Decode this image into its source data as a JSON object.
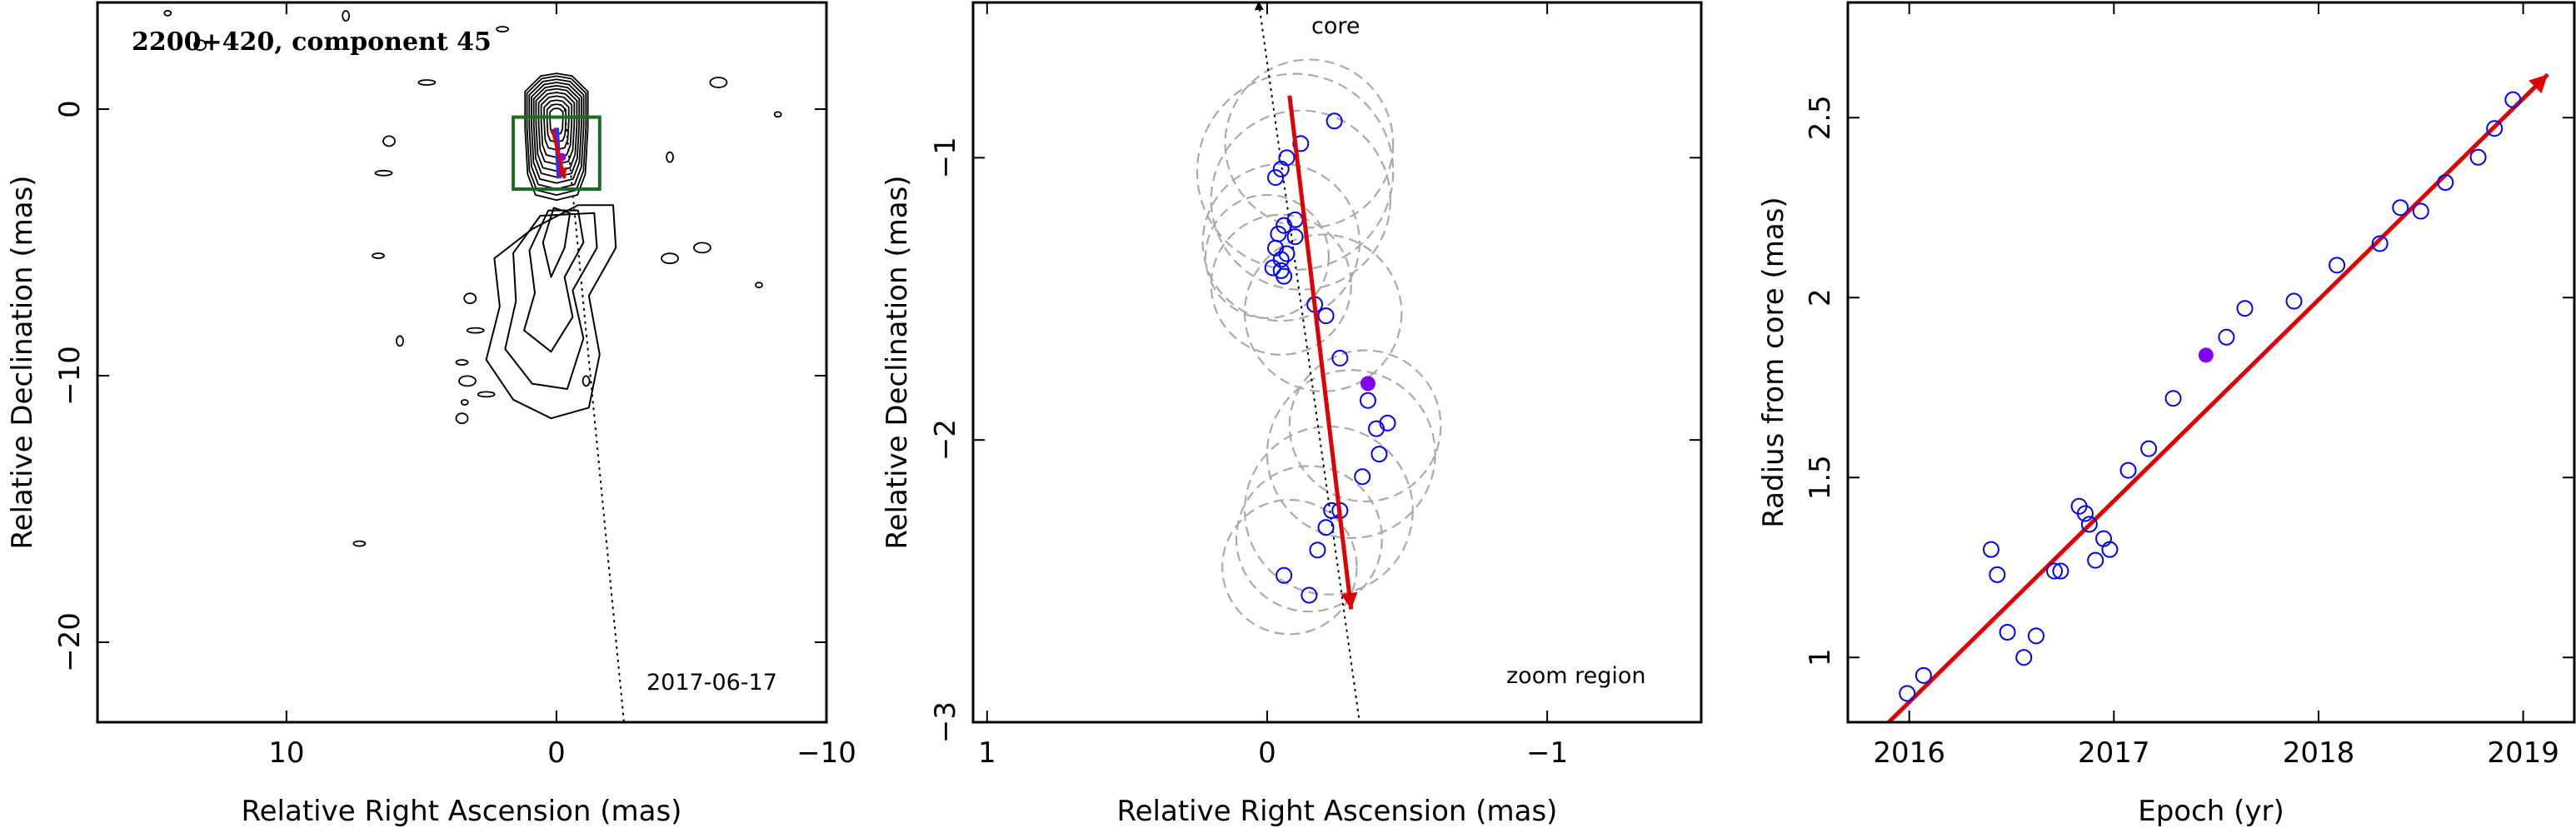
{
  "chart_data": [
    {
      "type": "scatter",
      "panel": "contour-map",
      "title": "2200+420, component 45",
      "xlabel": "Relative Right Ascension (mas)",
      "ylabel": "Relative Declination (mas)",
      "xlim": [
        17,
        -10
      ],
      "ylim": [
        -23,
        4
      ],
      "xticks": [
        "10",
        "0",
        "−10"
      ],
      "xtick_values": [
        10,
        0,
        -10
      ],
      "yticks": [
        "0",
        "−10",
        "−20"
      ],
      "ytick_values": [
        0,
        -10,
        -20
      ],
      "date_label": "2017-06-17",
      "colors": {
        "contour": "#000000",
        "box": "#1a6e1a",
        "arrow": "#e00000",
        "marker": "#7f00ff"
      },
      "zoom_box": {
        "x": [
          1.6,
          -1.6
        ],
        "y": [
          -0.3,
          -3.0
        ]
      },
      "motion_arrow": {
        "from": [
          0.15,
          -0.75
        ],
        "to": [
          -0.3,
          -2.6
        ]
      },
      "track_line": {
        "from": [
          -0.3,
          0
        ],
        "to": [
          -2.5,
          -23
        ]
      },
      "jet_contour_levels": [
        0.18,
        0.24,
        0.31,
        0.38,
        0.45,
        0.52,
        0.6,
        0.68,
        0.77,
        0.86,
        0.95
      ]
    },
    {
      "type": "scatter",
      "panel": "zoom",
      "xlabel": "Relative Right Ascension (mas)",
      "ylabel": "Relative Declination (mas)",
      "xlim": [
        1.05,
        -1.55
      ],
      "ylim": [
        -3.0,
        -0.45
      ],
      "xticks": [
        "1",
        "0",
        "−1"
      ],
      "xtick_values": [
        1,
        0,
        -1
      ],
      "yticks": [
        "−1",
        "−2",
        "−3"
      ],
      "ytick_values": [
        -1,
        -2,
        -3
      ],
      "core_label": "core",
      "region_label": "zoom region",
      "colors": {
        "points": "#0000ff",
        "highlight": "#7f00ff",
        "arrow": "#e00000",
        "circles": "#aaaaaa"
      },
      "points": [
        {
          "x": -0.24,
          "y": -0.87
        },
        {
          "x": -0.12,
          "y": -0.95
        },
        {
          "x": -0.07,
          "y": -1.0
        },
        {
          "x": -0.05,
          "y": -1.04
        },
        {
          "x": -0.03,
          "y": -1.07
        },
        {
          "x": -0.1,
          "y": -1.22
        },
        {
          "x": -0.06,
          "y": -1.24
        },
        {
          "x": -0.1,
          "y": -1.28
        },
        {
          "x": -0.04,
          "y": -1.27
        },
        {
          "x": -0.03,
          "y": -1.32
        },
        {
          "x": -0.05,
          "y": -1.36
        },
        {
          "x": -0.07,
          "y": -1.34
        },
        {
          "x": -0.02,
          "y": -1.39
        },
        {
          "x": -0.06,
          "y": -1.42
        },
        {
          "x": -0.05,
          "y": -1.4
        },
        {
          "x": -0.17,
          "y": -1.52
        },
        {
          "x": -0.21,
          "y": -1.56
        },
        {
          "x": -0.26,
          "y": -1.71
        },
        {
          "x": -0.36,
          "y": -1.86
        },
        {
          "x": -0.39,
          "y": -1.96
        },
        {
          "x": -0.43,
          "y": -1.94
        },
        {
          "x": -0.4,
          "y": -2.05
        },
        {
          "x": -0.34,
          "y": -2.13
        },
        {
          "x": -0.26,
          "y": -2.25
        },
        {
          "x": -0.23,
          "y": -2.25
        },
        {
          "x": -0.21,
          "y": -2.31
        },
        {
          "x": -0.18,
          "y": -2.39
        },
        {
          "x": -0.06,
          "y": -2.48
        },
        {
          "x": -0.15,
          "y": -2.55
        }
      ],
      "highlight": {
        "x": -0.36,
        "y": -1.8
      },
      "uncertainty_circles": [
        {
          "x": -0.05,
          "y": -1.3,
          "r": 0.28
        },
        {
          "x": 0.0,
          "y": -1.35,
          "r": 0.22
        },
        {
          "x": -0.12,
          "y": -1.15,
          "r": 0.32
        },
        {
          "x": -0.1,
          "y": -1.05,
          "r": 0.35
        },
        {
          "x": -0.05,
          "y": -1.45,
          "r": 0.25
        },
        {
          "x": -0.15,
          "y": -0.95,
          "r": 0.3
        },
        {
          "x": -0.2,
          "y": -1.55,
          "r": 0.28
        },
        {
          "x": -0.35,
          "y": -1.95,
          "r": 0.27
        },
        {
          "x": -0.3,
          "y": -2.05,
          "r": 0.3
        },
        {
          "x": -0.15,
          "y": -2.35,
          "r": 0.26
        },
        {
          "x": -0.08,
          "y": -2.45,
          "r": 0.24
        },
        {
          "x": -0.22,
          "y": -2.25,
          "r": 0.3
        }
      ],
      "motion_arrow": {
        "from": [
          -0.08,
          -0.78
        ],
        "to": [
          -0.3,
          -2.6
        ]
      },
      "track_line": {
        "from": [
          0.03,
          -0.45
        ],
        "to": [
          -0.33,
          -3.0
        ]
      }
    },
    {
      "type": "scatter",
      "panel": "radius-vs-epoch",
      "xlabel": "Epoch (yr)",
      "ylabel": "Radius from core (mas)",
      "xlim": [
        2015.7,
        2019.25
      ],
      "ylim": [
        0.82,
        2.82
      ],
      "xticks": [
        "2016",
        "2017",
        "2018",
        "2019"
      ],
      "xtick_values": [
        2016,
        2017,
        2018,
        2019
      ],
      "yticks": [
        "1",
        "1.5",
        "2",
        "2.5"
      ],
      "ytick_values": [
        1,
        1.5,
        2,
        2.5
      ],
      "colors": {
        "points": "#0000ff",
        "highlight": "#7f00ff",
        "fit": "#e00000"
      },
      "points": [
        {
          "x": 2015.99,
          "y": 0.9
        },
        {
          "x": 2016.07,
          "y": 0.95
        },
        {
          "x": 2016.4,
          "y": 1.3
        },
        {
          "x": 2016.43,
          "y": 1.23
        },
        {
          "x": 2016.48,
          "y": 1.07
        },
        {
          "x": 2016.56,
          "y": 1.0
        },
        {
          "x": 2016.62,
          "y": 1.06
        },
        {
          "x": 2016.71,
          "y": 1.24
        },
        {
          "x": 2016.74,
          "y": 1.24
        },
        {
          "x": 2016.83,
          "y": 1.42
        },
        {
          "x": 2016.86,
          "y": 1.4
        },
        {
          "x": 2016.88,
          "y": 1.37
        },
        {
          "x": 2016.91,
          "y": 1.27
        },
        {
          "x": 2016.95,
          "y": 1.33
        },
        {
          "x": 2016.98,
          "y": 1.3
        },
        {
          "x": 2017.07,
          "y": 1.52
        },
        {
          "x": 2017.17,
          "y": 1.58
        },
        {
          "x": 2017.29,
          "y": 1.72
        },
        {
          "x": 2017.55,
          "y": 1.89
        },
        {
          "x": 2017.64,
          "y": 1.97
        },
        {
          "x": 2017.88,
          "y": 1.99
        },
        {
          "x": 2018.09,
          "y": 2.09
        },
        {
          "x": 2018.3,
          "y": 2.15
        },
        {
          "x": 2018.4,
          "y": 2.25
        },
        {
          "x": 2018.5,
          "y": 2.24
        },
        {
          "x": 2018.62,
          "y": 2.32
        },
        {
          "x": 2018.78,
          "y": 2.39
        },
        {
          "x": 2018.86,
          "y": 2.47
        },
        {
          "x": 2018.95,
          "y": 2.55
        }
      ],
      "highlight": {
        "x": 2017.45,
        "y": 1.84
      },
      "fit_line": {
        "from": [
          2015.9,
          0.82
        ],
        "to": [
          2019.12,
          2.62
        ]
      }
    }
  ]
}
